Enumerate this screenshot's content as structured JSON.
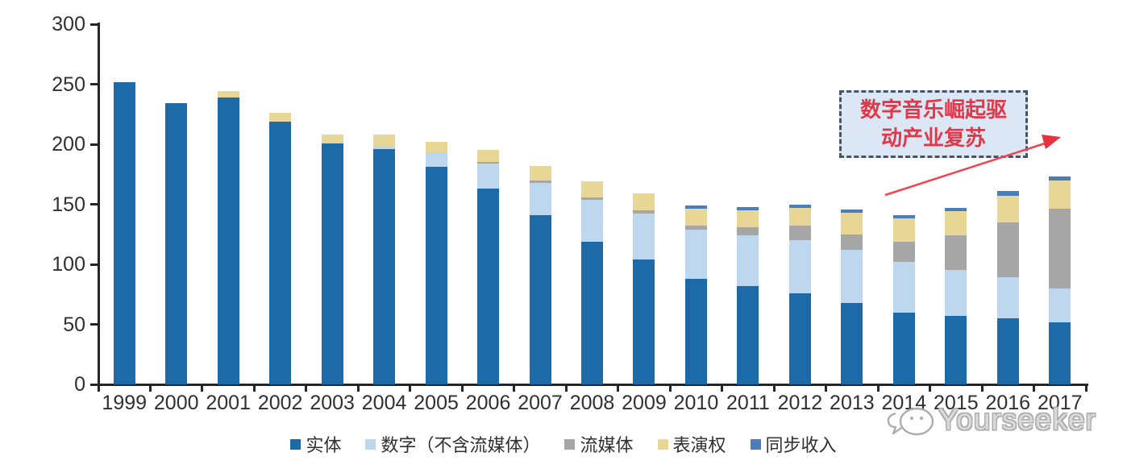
{
  "chart_data": {
    "type": "bar",
    "stacked": true,
    "title": "",
    "xlabel": "",
    "ylabel": "",
    "ylim": [
      0,
      300
    ],
    "yticks": [
      0,
      50,
      100,
      150,
      200,
      250,
      300
    ],
    "grid": "off",
    "legend_position": "bottom",
    "categories": [
      "1999",
      "2000",
      "2001",
      "2002",
      "2003",
      "2004",
      "2005",
      "2006",
      "2007",
      "2008",
      "2009",
      "2010",
      "2011",
      "2012",
      "2013",
      "2014",
      "2015",
      "2016",
      "2017"
    ],
    "series": [
      {
        "name": "实体",
        "color": "#1C6BA8",
        "values": [
          252,
          234,
          239,
          219,
          201,
          196,
          181,
          163,
          141,
          119,
          104,
          88,
          82,
          76,
          68,
          60,
          57,
          55,
          52
        ]
      },
      {
        "name": "数字（不含流媒体）",
        "color": "#BDD7EE",
        "values": [
          0,
          0,
          0,
          0,
          0,
          3,
          12,
          21,
          27,
          35,
          38,
          41,
          42,
          44,
          44,
          42,
          38,
          34,
          28
        ]
      },
      {
        "name": "流媒体",
        "color": "#A6A6A6",
        "values": [
          0,
          0,
          0,
          0,
          0,
          0,
          0,
          1,
          2,
          2,
          3,
          3,
          7,
          12,
          13,
          17,
          29,
          46,
          66
        ]
      },
      {
        "name": "表演权",
        "color": "#E8D696",
        "values": [
          0,
          0,
          5,
          7,
          7,
          9,
          9,
          10,
          12,
          13,
          14,
          14,
          14,
          15,
          18,
          19,
          20,
          22,
          24
        ]
      },
      {
        "name": "同步收入",
        "color": "#4A7EBB",
        "values": [
          0,
          0,
          0,
          0,
          0,
          0,
          0,
          0,
          0,
          0,
          0,
          3,
          3,
          3,
          3,
          3,
          3,
          4,
          3
        ]
      }
    ]
  },
  "annotation": {
    "line1": "数字音乐崛起驱",
    "line2": "动产业复苏",
    "box_fill": "#DBE7F5",
    "border_color": "#44546A",
    "text_color": "#E03848",
    "arrow_color": "#F2434E"
  },
  "watermark": {
    "text": "Yourseeker",
    "color": "#ACACAC",
    "logo": "chat-bubble-face-icon"
  },
  "axis": {
    "line_color": "#262626",
    "label_color": "#303030"
  }
}
